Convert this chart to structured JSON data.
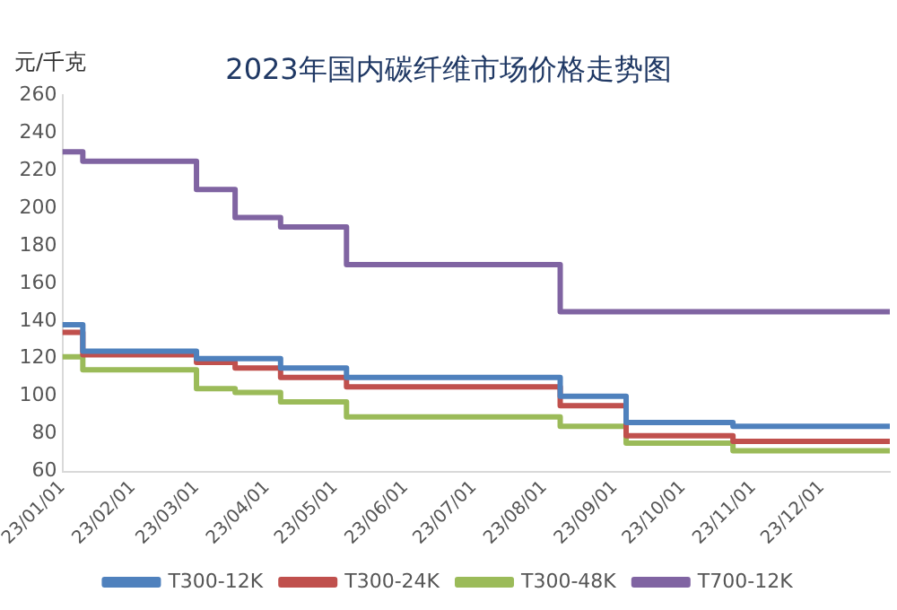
{
  "chart_data": {
    "type": "step",
    "title": "2023年国内碳纤维市场价格走势图",
    "ylabel": "元/千克",
    "x": [
      "2023-01-01",
      "2023-01-10",
      "2023-03-01",
      "2023-03-18",
      "2023-04-07",
      "2023-05-06",
      "2023-08-08",
      "2023-09-06",
      "2023-10-23",
      "2023-12-31"
    ],
    "series": [
      {
        "name": "T300-12K",
        "color": "#4f81bd",
        "values": [
          138,
          124,
          120,
          120,
          115,
          110,
          100,
          86,
          84,
          84
        ]
      },
      {
        "name": "T300-24K",
        "color": "#c0504d",
        "values": [
          134,
          122,
          118,
          115,
          110,
          105,
          95,
          79,
          76,
          76
        ]
      },
      {
        "name": "T300-48K",
        "color": "#9bbb59",
        "values": [
          121,
          114,
          104,
          102,
          97,
          89,
          84,
          75,
          71,
          71
        ]
      },
      {
        "name": "T700-12K",
        "color": "#8064a2",
        "values": [
          230,
          225,
          210,
          195,
          190,
          170,
          145,
          145,
          145,
          145
        ]
      }
    ],
    "xlim": [
      "2023-01-01",
      "2023-12-31"
    ],
    "xticks": [
      {
        "value": "2023-01-01",
        "label": "23/01/01"
      },
      {
        "value": "2023-02-01",
        "label": "23/02/01"
      },
      {
        "value": "2023-03-01",
        "label": "23/03/01"
      },
      {
        "value": "2023-04-01",
        "label": "23/04/01"
      },
      {
        "value": "2023-05-01",
        "label": "23/05/01"
      },
      {
        "value": "2023-06-01",
        "label": "23/06/01"
      },
      {
        "value": "2023-07-01",
        "label": "23/07/01"
      },
      {
        "value": "2023-08-01",
        "label": "23/08/01"
      },
      {
        "value": "2023-09-01",
        "label": "23/09/01"
      },
      {
        "value": "2023-10-01",
        "label": "23/10/01"
      },
      {
        "value": "2023-11-01",
        "label": "23/11/01"
      },
      {
        "value": "2023-12-01",
        "label": "23/12/01"
      }
    ],
    "ylim": [
      60,
      260
    ],
    "yticks": [
      60,
      80,
      100,
      120,
      140,
      160,
      180,
      200,
      220,
      240,
      260
    ],
    "grid": false,
    "legend": "bottom",
    "marker": "none",
    "line_style": "solid"
  }
}
